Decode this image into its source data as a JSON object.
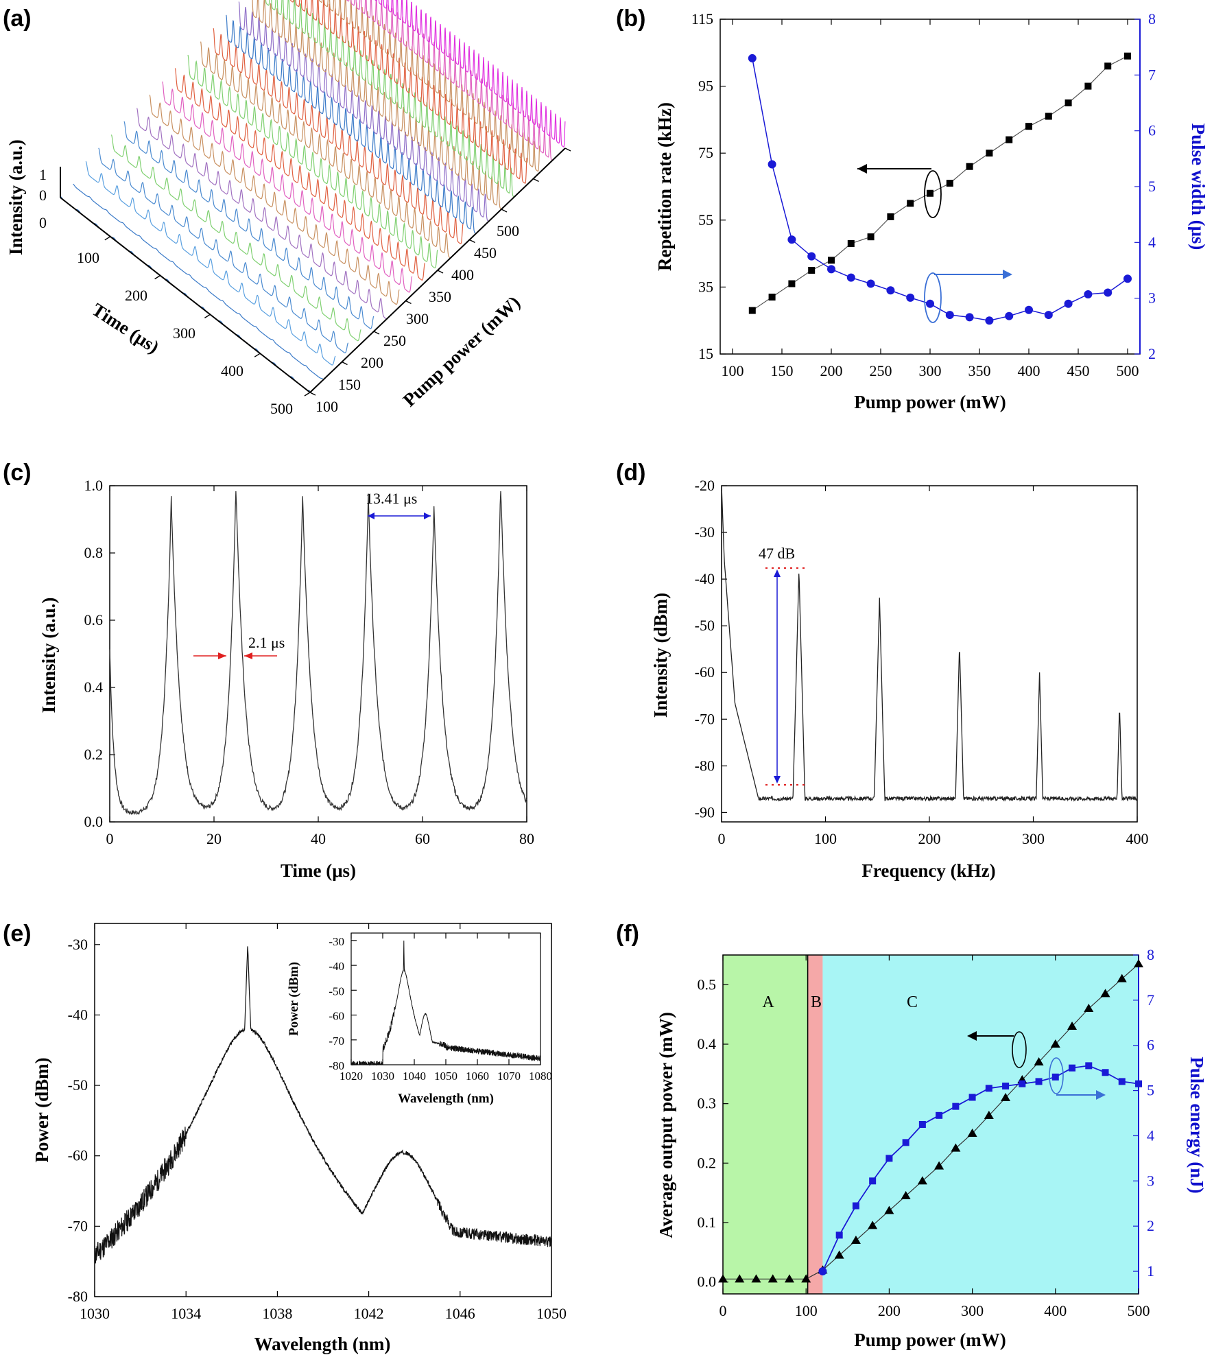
{
  "panels": {
    "a": {
      "label": "(a)",
      "zlabel": "Intensity (a.u.)",
      "xlabel": "Time (μs)",
      "ylabel": "Pump power (mW)",
      "zticks": [
        "1",
        "0",
        "0"
      ],
      "time_ticks": [
        "100",
        "200",
        "300",
        "400",
        "500"
      ],
      "power_ticks": [
        "100",
        "150",
        "200",
        "250",
        "300",
        "350",
        "400",
        "450",
        "500"
      ]
    },
    "b": {
      "label": "(b)",
      "xlabel": "Pump power (mW)",
      "ylabel_left": "Repetition rate (kHz)",
      "ylabel_right": "Pulse width (μs)",
      "xticks": [
        "100",
        "150",
        "200",
        "250",
        "300",
        "350",
        "400",
        "450",
        "500"
      ],
      "yticks_left": [
        "15",
        "35",
        "55",
        "75",
        "95",
        "115"
      ],
      "yticks_right": [
        "2",
        "3",
        "4",
        "5",
        "6",
        "7",
        "8"
      ]
    },
    "c": {
      "label": "(c)",
      "xlabel": "Time (μs)",
      "ylabel": "Intensity (a.u.)",
      "xticks": [
        "0",
        "20",
        "40",
        "60",
        "80"
      ],
      "yticks": [
        "0.0",
        "0.2",
        "0.4",
        "0.6",
        "0.8",
        "1.0"
      ],
      "ann_period": "13.41 μs",
      "ann_width": "2.1 μs"
    },
    "d": {
      "label": "(d)",
      "xlabel": "Frequency (kHz)",
      "ylabel": "Intensity (dBm)",
      "xticks": [
        "0",
        "100",
        "200",
        "300",
        "400"
      ],
      "yticks": [
        "-90",
        "-80",
        "-70",
        "-60",
        "-50",
        "-40",
        "-30",
        "-20"
      ],
      "ann_snr": "47 dB"
    },
    "e": {
      "label": "(e)",
      "xlabel": "Wavelength (nm)",
      "ylabel": "Power (dBm)",
      "xticks": [
        "1030",
        "1034",
        "1038",
        "1042",
        "1046",
        "1050"
      ],
      "yticks": [
        "-80",
        "-70",
        "-60",
        "-50",
        "-40",
        "-30"
      ],
      "inset": {
        "xlabel": "Wavelength (nm)",
        "ylabel": "Power (dBm)",
        "xticks": [
          "1020",
          "1030",
          "1040",
          "1050",
          "1060",
          "1070",
          "1080"
        ],
        "yticks": [
          "-80",
          "-70",
          "-60",
          "-50",
          "-40",
          "-30"
        ]
      }
    },
    "f": {
      "label": "(f)",
      "xlabel": "Pump power (mW)",
      "ylabel_left": "Average output power (mW)",
      "ylabel_right": "Pulse energy (nJ)",
      "xticks": [
        "0",
        "100",
        "200",
        "300",
        "400",
        "500"
      ],
      "yticks_left": [
        "0.0",
        "0.1",
        "0.2",
        "0.3",
        "0.4",
        "0.5"
      ],
      "yticks_right": [
        "1",
        "2",
        "3",
        "4",
        "5",
        "6",
        "7",
        "8"
      ],
      "region_labels": [
        "A",
        "B",
        "C"
      ]
    }
  },
  "colors": {
    "blue": "#1a1ad6",
    "arrow_blue": "#3a6fd6",
    "red": "#e02020",
    "region_a": "#b8f5a8",
    "region_b": "#f5a8a8",
    "region_c": "#a8f5f5"
  },
  "chart_data": [
    {
      "type": "line",
      "panel": "a",
      "title": "",
      "description_of_series": "pulse trains vs time at each pump power",
      "power_mW": [
        100,
        120,
        140,
        160,
        180,
        200,
        220,
        240,
        260,
        280,
        300,
        320,
        340,
        360,
        380,
        400,
        420,
        440,
        460,
        480,
        500
      ],
      "time_range": [
        0,
        500
      ],
      "zlim": [
        0,
        1
      ]
    },
    {
      "type": "scatter",
      "panel": "b",
      "xlim": [
        100,
        500
      ],
      "ylim_left": [
        15,
        115
      ],
      "ylim_right": [
        2,
        8
      ],
      "series": [
        {
          "name": "Repetition rate",
          "axis": "left",
          "x": [
            120,
            140,
            160,
            180,
            200,
            220,
            240,
            260,
            280,
            300,
            320,
            340,
            360,
            380,
            400,
            420,
            440,
            460,
            480,
            500
          ],
          "values": [
            28,
            32,
            36,
            40,
            43,
            48,
            50,
            56,
            60,
            63,
            66,
            71,
            75,
            79,
            83,
            86,
            90,
            95,
            101,
            104
          ]
        },
        {
          "name": "Pulse width",
          "axis": "right",
          "x": [
            120,
            140,
            160,
            180,
            200,
            220,
            240,
            260,
            280,
            300,
            320,
            340,
            360,
            380,
            400,
            420,
            440,
            460,
            480,
            500
          ],
          "values": [
            7.3,
            5.4,
            4.05,
            3.75,
            3.52,
            3.37,
            3.26,
            3.14,
            3.01,
            2.9,
            2.7,
            2.66,
            2.6,
            2.68,
            2.79,
            2.7,
            2.9,
            3.07,
            3.1,
            3.35
          ]
        }
      ]
    },
    {
      "type": "line",
      "panel": "c",
      "xlim": [
        0,
        80
      ],
      "ylim": [
        0,
        1
      ],
      "peak_times": [
        11.8,
        24.2,
        37.0,
        49.6,
        62.2,
        75.0
      ],
      "peak_values": [
        0.96,
        1.0,
        0.97,
        0.97,
        0.94,
        1.0
      ]
    },
    {
      "type": "line",
      "panel": "d",
      "xlim": [
        0,
        400
      ],
      "ylim": [
        -92,
        -20
      ],
      "noise_floor": -87,
      "peak_freqs": [
        74.5,
        152,
        229,
        306,
        383
      ],
      "peak_values": [
        -38,
        -44,
        -54,
        -60,
        -67
      ]
    },
    {
      "type": "line",
      "panel": "e",
      "xlim": [
        1030,
        1050
      ],
      "ylim": [
        -80,
        -27
      ],
      "peaks": [
        {
          "x": 1036.7,
          "y": -30
        },
        {
          "x": 1043.5,
          "y": -59.5
        }
      ],
      "inset": {
        "xlim": [
          1020,
          1080
        ],
        "ylim": [
          -80,
          -27
        ]
      }
    },
    {
      "type": "scatter",
      "panel": "f",
      "xlim": [
        0,
        500
      ],
      "ylim_left": [
        -0.02,
        0.55
      ],
      "ylim_right": [
        0.5,
        8
      ],
      "regions": [
        [
          0,
          102
        ],
        [
          102,
          120
        ],
        [
          120,
          500
        ]
      ],
      "series": [
        {
          "name": "Average output power",
          "axis": "left",
          "x": [
            0,
            20,
            40,
            60,
            80,
            100,
            120,
            140,
            160,
            180,
            200,
            220,
            240,
            260,
            280,
            300,
            320,
            340,
            360,
            380,
            400,
            420,
            440,
            460,
            480,
            500
          ],
          "values": [
            0.005,
            0.005,
            0.005,
            0.005,
            0.005,
            0.005,
            0.02,
            0.045,
            0.07,
            0.095,
            0.12,
            0.145,
            0.17,
            0.195,
            0.225,
            0.25,
            0.28,
            0.31,
            0.34,
            0.37,
            0.4,
            0.43,
            0.46,
            0.485,
            0.51,
            0.535
          ]
        },
        {
          "name": "Pulse energy",
          "axis": "right",
          "x": [
            120,
            140,
            160,
            180,
            200,
            220,
            240,
            260,
            280,
            300,
            320,
            340,
            360,
            380,
            400,
            420,
            440,
            460,
            480,
            500
          ],
          "values": [
            1.0,
            1.8,
            2.45,
            3.0,
            3.5,
            3.85,
            4.25,
            4.45,
            4.65,
            4.85,
            5.05,
            5.1,
            5.15,
            5.2,
            5.3,
            5.5,
            5.55,
            5.4,
            5.2,
            5.15
          ]
        }
      ]
    }
  ]
}
